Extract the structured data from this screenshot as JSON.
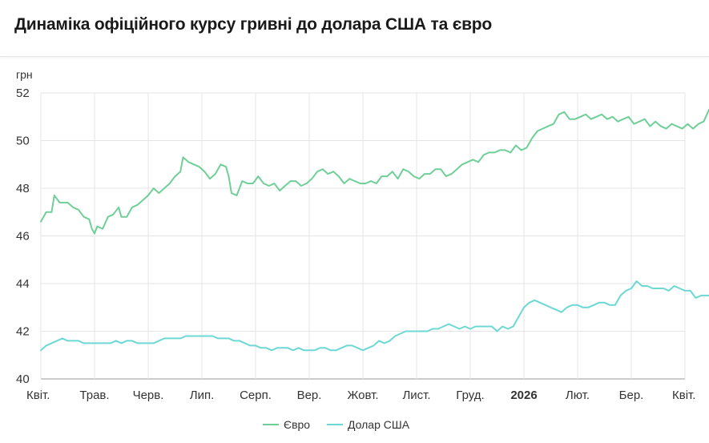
{
  "page": {
    "title": "Динаміка офіційного курсу гривні до долара США та євро"
  },
  "chart_data": {
    "type": "line",
    "ylabel": "грн",
    "ylim": [
      40,
      52
    ],
    "yticks": [
      40,
      42,
      44,
      46,
      48,
      50,
      52
    ],
    "xlim": [
      0,
      12.5
    ],
    "grid": true,
    "legend": "bottom-center",
    "x_ticks": [
      {
        "x": 0,
        "label": "Квіт.",
        "bold": false
      },
      {
        "x": 1,
        "label": "Трав.",
        "bold": false
      },
      {
        "x": 2,
        "label": "Черв.",
        "bold": false
      },
      {
        "x": 3,
        "label": "Лип.",
        "bold": false
      },
      {
        "x": 4,
        "label": "Серп.",
        "bold": false
      },
      {
        "x": 5,
        "label": "Вер.",
        "bold": false
      },
      {
        "x": 6,
        "label": "Жовт.",
        "bold": false
      },
      {
        "x": 7,
        "label": "Лист.",
        "bold": false
      },
      {
        "x": 8,
        "label": "Груд.",
        "bold": false
      },
      {
        "x": 9,
        "label": "2026",
        "bold": true
      },
      {
        "x": 10,
        "label": "Лют.",
        "bold": false
      },
      {
        "x": 11,
        "label": "Бер.",
        "bold": false
      },
      {
        "x": 12,
        "label": "Квіт.",
        "bold": false
      }
    ],
    "series": [
      {
        "name": "Євро",
        "color": "#6fcf97",
        "points": [
          [
            0.0,
            46.6
          ],
          [
            0.1,
            47.0
          ],
          [
            0.2,
            47.0
          ],
          [
            0.25,
            47.7
          ],
          [
            0.35,
            47.4
          ],
          [
            0.5,
            47.4
          ],
          [
            0.6,
            47.2
          ],
          [
            0.7,
            47.1
          ],
          [
            0.8,
            46.8
          ],
          [
            0.9,
            46.7
          ],
          [
            0.95,
            46.3
          ],
          [
            1.0,
            46.1
          ],
          [
            1.05,
            46.4
          ],
          [
            1.15,
            46.3
          ],
          [
            1.25,
            46.8
          ],
          [
            1.35,
            46.9
          ],
          [
            1.45,
            47.2
          ],
          [
            1.5,
            46.8
          ],
          [
            1.6,
            46.8
          ],
          [
            1.7,
            47.2
          ],
          [
            1.8,
            47.3
          ],
          [
            1.9,
            47.5
          ],
          [
            2.0,
            47.7
          ],
          [
            2.1,
            48.0
          ],
          [
            2.2,
            47.8
          ],
          [
            2.3,
            48.0
          ],
          [
            2.4,
            48.2
          ],
          [
            2.5,
            48.5
          ],
          [
            2.6,
            48.7
          ],
          [
            2.65,
            49.3
          ],
          [
            2.75,
            49.1
          ],
          [
            2.85,
            49.0
          ],
          [
            2.95,
            48.9
          ],
          [
            3.05,
            48.7
          ],
          [
            3.15,
            48.4
          ],
          [
            3.25,
            48.6
          ],
          [
            3.35,
            49.0
          ],
          [
            3.45,
            48.9
          ],
          [
            3.5,
            48.5
          ],
          [
            3.55,
            47.8
          ],
          [
            3.65,
            47.7
          ],
          [
            3.75,
            48.3
          ],
          [
            3.85,
            48.2
          ],
          [
            3.95,
            48.2
          ],
          [
            4.05,
            48.5
          ],
          [
            4.15,
            48.2
          ],
          [
            4.25,
            48.1
          ],
          [
            4.35,
            48.2
          ],
          [
            4.45,
            47.9
          ],
          [
            4.55,
            48.1
          ],
          [
            4.65,
            48.3
          ],
          [
            4.75,
            48.3
          ],
          [
            4.85,
            48.1
          ],
          [
            4.95,
            48.2
          ],
          [
            5.05,
            48.4
          ],
          [
            5.15,
            48.7
          ],
          [
            5.25,
            48.8
          ],
          [
            5.35,
            48.6
          ],
          [
            5.45,
            48.7
          ],
          [
            5.55,
            48.5
          ],
          [
            5.65,
            48.2
          ],
          [
            5.75,
            48.4
          ],
          [
            5.85,
            48.3
          ],
          [
            5.95,
            48.2
          ],
          [
            6.05,
            48.2
          ],
          [
            6.15,
            48.3
          ],
          [
            6.25,
            48.2
          ],
          [
            6.35,
            48.5
          ],
          [
            6.45,
            48.5
          ],
          [
            6.55,
            48.7
          ],
          [
            6.65,
            48.4
          ],
          [
            6.75,
            48.8
          ],
          [
            6.85,
            48.7
          ],
          [
            6.95,
            48.5
          ],
          [
            7.05,
            48.4
          ],
          [
            7.15,
            48.6
          ],
          [
            7.25,
            48.6
          ],
          [
            7.35,
            48.8
          ],
          [
            7.45,
            48.8
          ],
          [
            7.55,
            48.5
          ],
          [
            7.65,
            48.6
          ],
          [
            7.75,
            48.8
          ],
          [
            7.85,
            49.0
          ],
          [
            7.95,
            49.1
          ],
          [
            8.05,
            49.2
          ],
          [
            8.15,
            49.1
          ],
          [
            8.25,
            49.4
          ],
          [
            8.35,
            49.5
          ],
          [
            8.45,
            49.5
          ],
          [
            8.55,
            49.6
          ],
          [
            8.65,
            49.6
          ],
          [
            8.75,
            49.5
          ],
          [
            8.85,
            49.8
          ],
          [
            8.95,
            49.6
          ],
          [
            9.05,
            49.7
          ],
          [
            9.15,
            50.1
          ],
          [
            9.25,
            50.4
          ],
          [
            9.35,
            50.5
          ],
          [
            9.45,
            50.6
          ],
          [
            9.55,
            50.7
          ],
          [
            9.65,
            51.1
          ],
          [
            9.75,
            51.2
          ],
          [
            9.85,
            50.9
          ],
          [
            9.95,
            50.9
          ],
          [
            10.05,
            51.0
          ],
          [
            10.15,
            51.1
          ],
          [
            10.25,
            50.9
          ],
          [
            10.35,
            51.0
          ],
          [
            10.45,
            51.1
          ],
          [
            10.55,
            50.9
          ],
          [
            10.65,
            51.0
          ],
          [
            10.75,
            50.8
          ],
          [
            10.85,
            50.9
          ],
          [
            10.95,
            51.0
          ],
          [
            11.05,
            50.7
          ],
          [
            11.15,
            50.8
          ],
          [
            11.25,
            50.9
          ],
          [
            11.35,
            50.6
          ],
          [
            11.45,
            50.8
          ],
          [
            11.55,
            50.6
          ],
          [
            11.65,
            50.5
          ],
          [
            11.75,
            50.7
          ],
          [
            11.85,
            50.6
          ],
          [
            11.95,
            50.5
          ],
          [
            12.05,
            50.7
          ],
          [
            12.15,
            50.5
          ],
          [
            12.25,
            50.7
          ],
          [
            12.35,
            50.8
          ],
          [
            12.45,
            51.3
          ]
        ]
      },
      {
        "name": "Долар США",
        "color": "#6dd8d4",
        "points": [
          [
            0.0,
            41.2
          ],
          [
            0.1,
            41.4
          ],
          [
            0.2,
            41.5
          ],
          [
            0.3,
            41.6
          ],
          [
            0.4,
            41.7
          ],
          [
            0.5,
            41.6
          ],
          [
            0.6,
            41.6
          ],
          [
            0.7,
            41.6
          ],
          [
            0.8,
            41.5
          ],
          [
            0.9,
            41.5
          ],
          [
            1.0,
            41.5
          ],
          [
            1.1,
            41.5
          ],
          [
            1.2,
            41.5
          ],
          [
            1.3,
            41.5
          ],
          [
            1.4,
            41.6
          ],
          [
            1.5,
            41.5
          ],
          [
            1.6,
            41.6
          ],
          [
            1.7,
            41.6
          ],
          [
            1.8,
            41.5
          ],
          [
            1.9,
            41.5
          ],
          [
            2.0,
            41.5
          ],
          [
            2.1,
            41.5
          ],
          [
            2.2,
            41.6
          ],
          [
            2.3,
            41.7
          ],
          [
            2.4,
            41.7
          ],
          [
            2.5,
            41.7
          ],
          [
            2.6,
            41.7
          ],
          [
            2.7,
            41.8
          ],
          [
            2.8,
            41.8
          ],
          [
            2.9,
            41.8
          ],
          [
            3.0,
            41.8
          ],
          [
            3.1,
            41.8
          ],
          [
            3.2,
            41.8
          ],
          [
            3.3,
            41.7
          ],
          [
            3.4,
            41.7
          ],
          [
            3.5,
            41.7
          ],
          [
            3.6,
            41.6
          ],
          [
            3.7,
            41.6
          ],
          [
            3.8,
            41.5
          ],
          [
            3.9,
            41.4
          ],
          [
            4.0,
            41.4
          ],
          [
            4.1,
            41.3
          ],
          [
            4.2,
            41.3
          ],
          [
            4.3,
            41.2
          ],
          [
            4.4,
            41.3
          ],
          [
            4.5,
            41.3
          ],
          [
            4.6,
            41.3
          ],
          [
            4.7,
            41.2
          ],
          [
            4.8,
            41.3
          ],
          [
            4.9,
            41.2
          ],
          [
            5.0,
            41.2
          ],
          [
            5.1,
            41.2
          ],
          [
            5.2,
            41.3
          ],
          [
            5.3,
            41.3
          ],
          [
            5.4,
            41.2
          ],
          [
            5.5,
            41.2
          ],
          [
            5.6,
            41.3
          ],
          [
            5.7,
            41.4
          ],
          [
            5.8,
            41.4
          ],
          [
            5.9,
            41.3
          ],
          [
            6.0,
            41.2
          ],
          [
            6.1,
            41.3
          ],
          [
            6.2,
            41.4
          ],
          [
            6.3,
            41.6
          ],
          [
            6.4,
            41.5
          ],
          [
            6.5,
            41.6
          ],
          [
            6.6,
            41.8
          ],
          [
            6.7,
            41.9
          ],
          [
            6.8,
            42.0
          ],
          [
            6.9,
            42.0
          ],
          [
            7.0,
            42.0
          ],
          [
            7.1,
            42.0
          ],
          [
            7.2,
            42.0
          ],
          [
            7.3,
            42.1
          ],
          [
            7.4,
            42.1
          ],
          [
            7.5,
            42.2
          ],
          [
            7.6,
            42.3
          ],
          [
            7.7,
            42.2
          ],
          [
            7.8,
            42.1
          ],
          [
            7.9,
            42.2
          ],
          [
            8.0,
            42.1
          ],
          [
            8.1,
            42.2
          ],
          [
            8.2,
            42.2
          ],
          [
            8.3,
            42.2
          ],
          [
            8.4,
            42.2
          ],
          [
            8.5,
            42.0
          ],
          [
            8.6,
            42.2
          ],
          [
            8.7,
            42.1
          ],
          [
            8.8,
            42.2
          ],
          [
            8.9,
            42.6
          ],
          [
            9.0,
            43.0
          ],
          [
            9.1,
            43.2
          ],
          [
            9.2,
            43.3
          ],
          [
            9.3,
            43.2
          ],
          [
            9.4,
            43.1
          ],
          [
            9.5,
            43.0
          ],
          [
            9.6,
            42.9
          ],
          [
            9.7,
            42.8
          ],
          [
            9.8,
            43.0
          ],
          [
            9.9,
            43.1
          ],
          [
            10.0,
            43.1
          ],
          [
            10.1,
            43.0
          ],
          [
            10.2,
            43.0
          ],
          [
            10.3,
            43.1
          ],
          [
            10.4,
            43.2
          ],
          [
            10.5,
            43.2
          ],
          [
            10.6,
            43.1
          ],
          [
            10.7,
            43.1
          ],
          [
            10.8,
            43.5
          ],
          [
            10.9,
            43.7
          ],
          [
            11.0,
            43.8
          ],
          [
            11.1,
            44.1
          ],
          [
            11.2,
            43.9
          ],
          [
            11.3,
            43.9
          ],
          [
            11.4,
            43.8
          ],
          [
            11.5,
            43.8
          ],
          [
            11.6,
            43.8
          ],
          [
            11.7,
            43.7
          ],
          [
            11.8,
            43.9
          ],
          [
            11.9,
            43.8
          ],
          [
            12.0,
            43.7
          ],
          [
            12.1,
            43.7
          ],
          [
            12.2,
            43.4
          ],
          [
            12.3,
            43.5
          ],
          [
            12.4,
            43.5
          ],
          [
            12.5,
            43.5
          ]
        ]
      }
    ]
  }
}
